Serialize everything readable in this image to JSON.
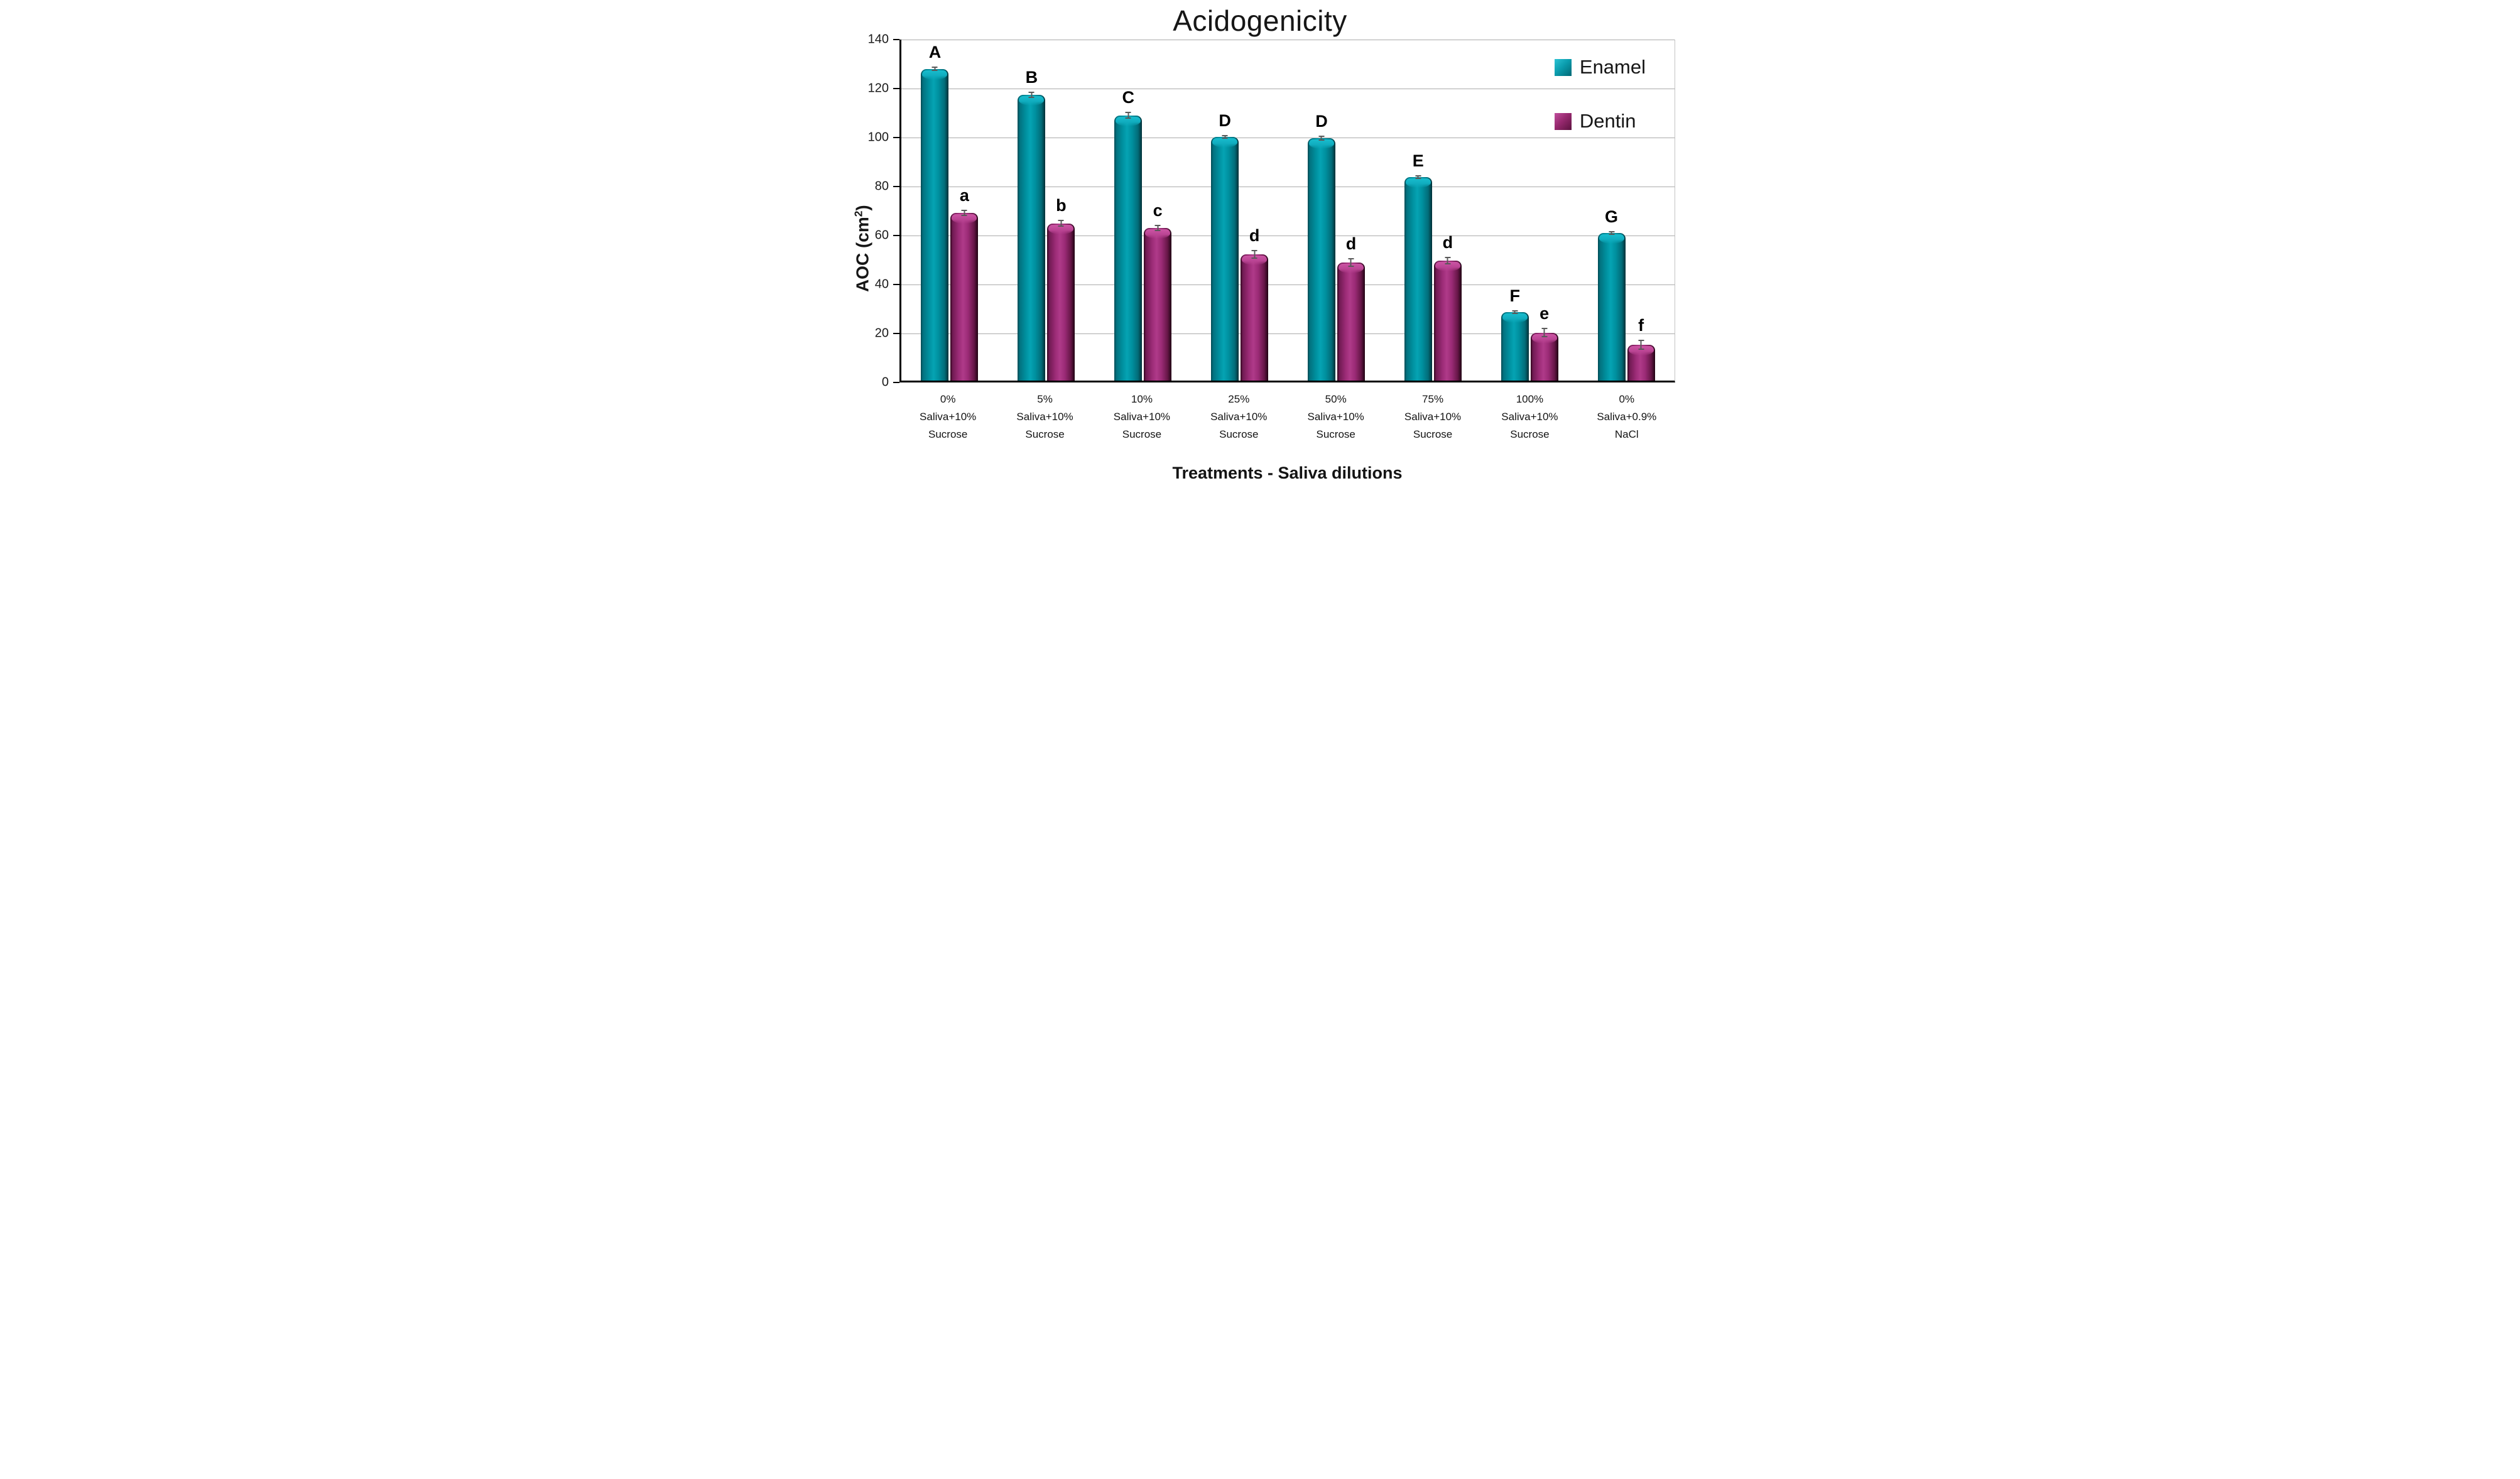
{
  "title": "Acidogenicity",
  "y_axis": {
    "title_pre": "AOC (cm",
    "title_sup": "2",
    "title_post": ")",
    "ticks": [
      0,
      20,
      40,
      60,
      80,
      100,
      120,
      140
    ]
  },
  "x_axis": {
    "title": "Treatments - Saliva dilutions"
  },
  "legend": [
    {
      "label": "Enamel",
      "color": "#00828F"
    },
    {
      "label": "Dentin",
      "color": "#93276E"
    }
  ],
  "chart_data": {
    "type": "bar",
    "title": "Acidogenicity",
    "xlabel": "Treatments - Saliva dilutions",
    "ylabel": "AOC (cm2)",
    "ylim": [
      0,
      140
    ],
    "ytick_interval": 20,
    "grid": true,
    "legend_position": "top-right-inside",
    "categories": [
      [
        "0%",
        "Saliva+10%",
        "Sucrose"
      ],
      [
        "5%",
        "Saliva+10%",
        "Sucrose"
      ],
      [
        "10%",
        "Saliva+10%",
        "Sucrose"
      ],
      [
        "25%",
        "Saliva+10%",
        "Sucrose"
      ],
      [
        "50%",
        "Saliva+10%",
        "Sucrose"
      ],
      [
        "75%",
        "Saliva+10%",
        "Sucrose"
      ],
      [
        "100%",
        "Saliva+10%",
        "Sucrose"
      ],
      [
        "0%",
        "Saliva+0.9%",
        "NaCl"
      ]
    ],
    "series": [
      {
        "name": "Enamel",
        "color": "#00828F",
        "values": [
          127.3,
          116.7,
          108.3,
          99.5,
          99.0,
          83.0,
          28.0,
          60.2
        ],
        "letters": [
          "A",
          "B",
          "C",
          "D",
          "D",
          "E",
          "F",
          "G"
        ],
        "errors": [
          1.0,
          1.2,
          1.5,
          0.8,
          1.0,
          0.8,
          0.8,
          0.8
        ]
      },
      {
        "name": "Dentin",
        "color": "#93276E",
        "values": [
          68.5,
          64.2,
          62.3,
          51.5,
          48.3,
          49.0,
          19.6,
          14.6
        ],
        "letters": [
          "a",
          "b",
          "c",
          "d",
          "d",
          "d",
          "e",
          "f"
        ],
        "errors": [
          1.2,
          1.5,
          1.3,
          1.8,
          1.8,
          1.5,
          2.0,
          2.0
        ]
      }
    ],
    "error_bar_color": "#595959",
    "gridline_color": "#ABABAB"
  }
}
